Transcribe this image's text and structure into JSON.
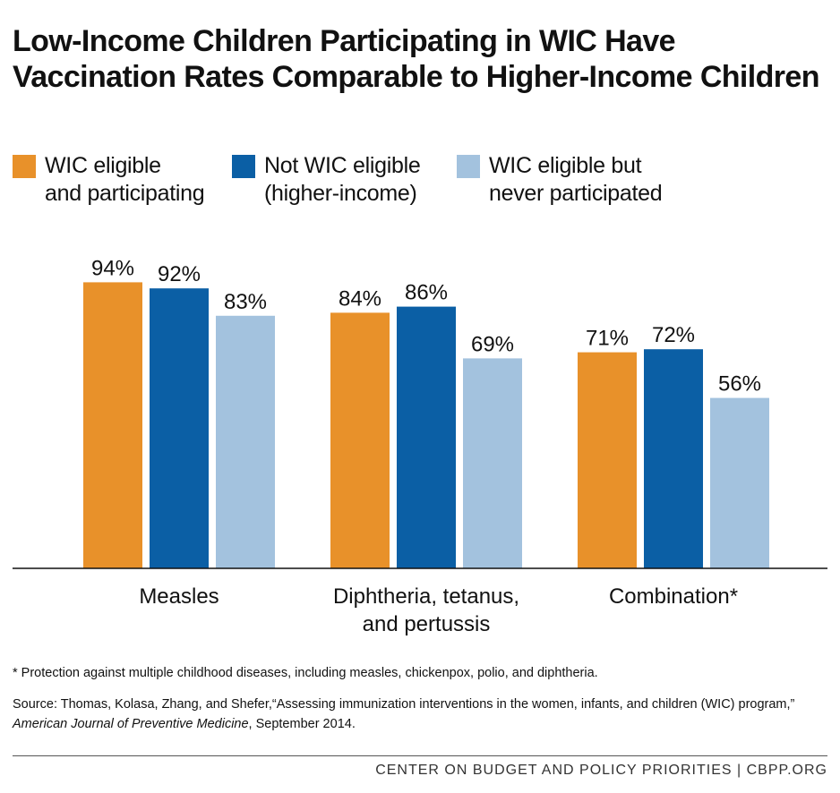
{
  "chart_data": {
    "type": "bar",
    "title_lines": [
      "Low-Income Children Participating in WIC Have",
      "Vaccination Rates Comparable to Higher-Income Children"
    ],
    "categories": [
      [
        "Measles"
      ],
      [
        "Diphtheria, tetanus,",
        "and pertussis"
      ],
      [
        "Combination*"
      ]
    ],
    "series": [
      {
        "name": "WIC eligible\nand participating",
        "color": "#e8912a",
        "values": [
          94,
          84,
          71
        ],
        "labels": [
          "94%",
          "84%",
          "71%"
        ]
      },
      {
        "name": "Not WIC eligible\n(higher-income)",
        "color": "#0b5fa5",
        "values": [
          92,
          86,
          72
        ],
        "labels": [
          "92%",
          "86%",
          "72%"
        ]
      },
      {
        "name": "WIC eligible but\nnever participated",
        "color": "#a3c2de",
        "values": [
          83,
          69,
          56
        ],
        "labels": [
          "83%",
          "69%",
          "56%"
        ]
      }
    ],
    "ylim": [
      0,
      100
    ],
    "grid": false,
    "legend_position": "top"
  },
  "footnote": "* Protection against multiple childhood diseases, including measles, chickenpox, polio, and diphtheria.",
  "source": {
    "prefix": "Source:  Thomas, Kolasa, Zhang, and Shefer,“Assessing immunization interventions in the women, infants, and children (WIC) program,” ",
    "journal": "American Journal of Preventive Medicine",
    "suffix": ", September 2014."
  },
  "credit": "CENTER ON BUDGET AND POLICY PRIORITIES | CBPP.ORG"
}
